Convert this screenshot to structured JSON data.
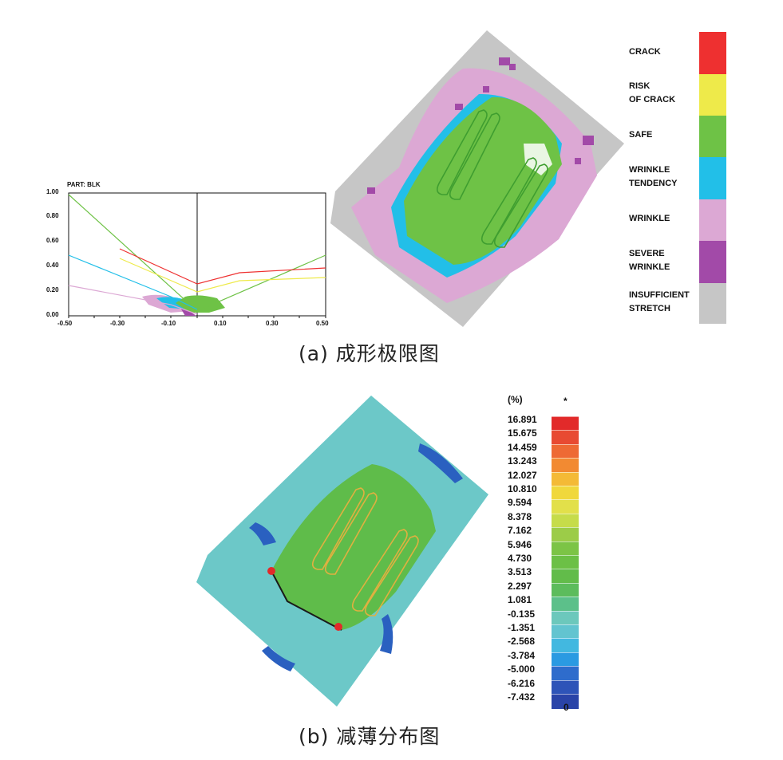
{
  "captions": {
    "a": "(a) 成形极限图",
    "b": "(b) 减薄分布图"
  },
  "fld_plot": {
    "part_label": "PART:  BLK",
    "y_ticks": [
      "1.00",
      "0.80",
      "0.60",
      "0.40",
      "0.20",
      "0.00"
    ],
    "x_ticks": [
      "-0.50",
      "-0.30",
      "-0.10",
      "0.10",
      "0.30",
      "0.50"
    ]
  },
  "fld_legend": [
    {
      "label": "CRACK",
      "color": "#ee3030"
    },
    {
      "label": "RISK\nOF CRACK",
      "color": "#eeea4a"
    },
    {
      "label": "SAFE",
      "color": "#6ec246"
    },
    {
      "label": "WRINKLE\nTENDENCY",
      "color": "#22bfe8"
    },
    {
      "label": "WRINKLE",
      "color": "#dca8d4"
    },
    {
      "label": "SEVERE\nWRINKLE",
      "color": "#a24aa8"
    },
    {
      "label": "INSUFFICIENT\nSTRETCH",
      "color": "#c6c6c6"
    }
  ],
  "thinning_legend": {
    "unit": "(%)",
    "top_mark": "*",
    "bottom_mark": "0",
    "levels": [
      "16.891",
      "15.675",
      "14.459",
      "13.243",
      "12.027",
      "10.810",
      "9.594",
      "8.378",
      "7.162",
      "5.946",
      "4.730",
      "3.513",
      "2.297",
      "1.081",
      "-0.135",
      "-1.351",
      "-2.568",
      "-3.784",
      "-5.000",
      "-6.216",
      "-7.432"
    ],
    "colors": [
      "#e22a2a",
      "#e84a32",
      "#ee6a34",
      "#f28a32",
      "#f4ba36",
      "#f0d83c",
      "#e2e04a",
      "#c6dc4a",
      "#9ccc48",
      "#7cc446",
      "#6cc046",
      "#62bc4a",
      "#5cbc5c",
      "#5cc08a",
      "#6cc8bc",
      "#62c4d0",
      "#42b8e0",
      "#2a9ae2",
      "#2e6ccc",
      "#2e54b8",
      "#2a44a8"
    ]
  }
}
